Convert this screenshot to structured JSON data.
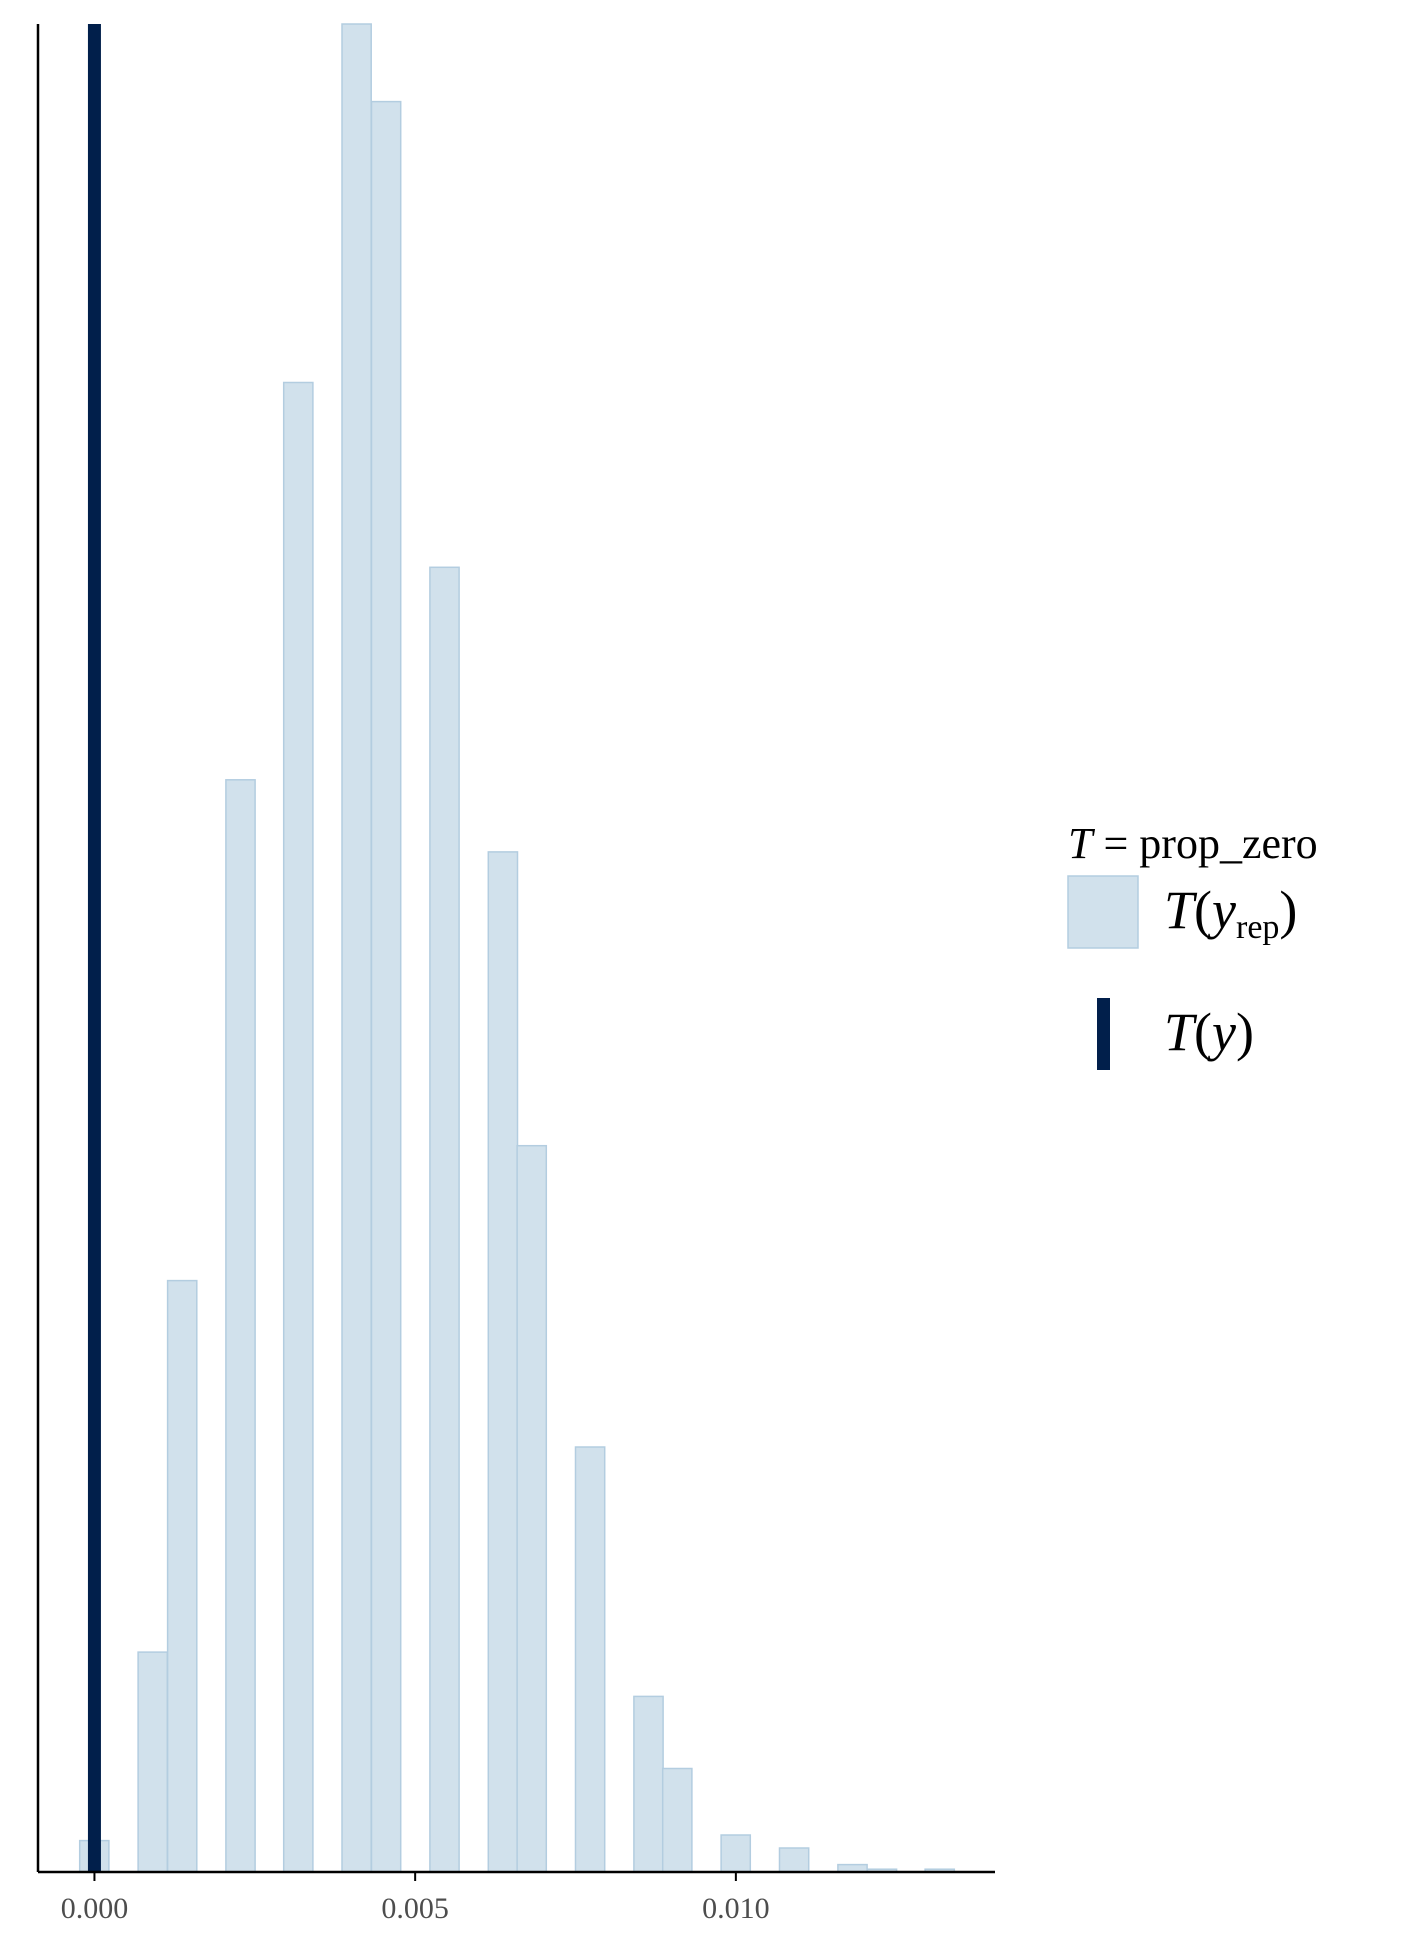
{
  "chart_data": {
    "type": "bar",
    "title": "",
    "xlabel": "",
    "ylabel": "",
    "xlim": [
      -0.00088,
      0.01404
    ],
    "ylim": [
      0,
      1
    ],
    "xticks": [
      {
        "value": 0.0,
        "label": "0.000"
      },
      {
        "value": 0.005,
        "label": "0.005"
      },
      {
        "value": 0.01,
        "label": "0.010"
      }
    ],
    "bin_width": 0.000455,
    "bins": [
      {
        "x0": -0.00023,
        "height": 0.017
      },
      {
        "x0": 0.00068,
        "height": 0.119
      },
      {
        "x0": 0.00114,
        "height": 0.32
      },
      {
        "x0": 0.00205,
        "height": 0.591
      },
      {
        "x0": 0.00295,
        "height": 0.806
      },
      {
        "x0": 0.00386,
        "height": 1.0
      },
      {
        "x0": 0.00432,
        "height": 0.958
      },
      {
        "x0": 0.00523,
        "height": 0.706
      },
      {
        "x0": 0.00614,
        "height": 0.552
      },
      {
        "x0": 0.00659,
        "height": 0.393
      },
      {
        "x0": 0.0075,
        "height": 0.23
      },
      {
        "x0": 0.00841,
        "height": 0.095
      },
      {
        "x0": 0.00886,
        "height": 0.056
      },
      {
        "x0": 0.00977,
        "height": 0.02
      },
      {
        "x0": 0.01068,
        "height": 0.013
      },
      {
        "x0": 0.01159,
        "height": 0.004
      },
      {
        "x0": 0.01205,
        "height": 0.0015
      },
      {
        "x0": 0.01295,
        "height": 0.0015
      }
    ],
    "observed": {
      "value": 0.0
    },
    "legend": {
      "placement": "right",
      "title_italic": "T",
      "title_rest": " = prop_zero",
      "rep_main": "T",
      "rep_open": "(",
      "rep_var": "y",
      "rep_sub": "rep",
      "rep_close": ")",
      "obs_main": "T",
      "obs_open": "(",
      "obs_var": "y",
      "obs_close": ")"
    },
    "colors": {
      "bar_fill": "#d1e1ec",
      "bar_stroke": "#b3cde0",
      "observed_line": "#011f4b",
      "axis": "#000000",
      "tick_label": "#4d4d4d"
    }
  }
}
